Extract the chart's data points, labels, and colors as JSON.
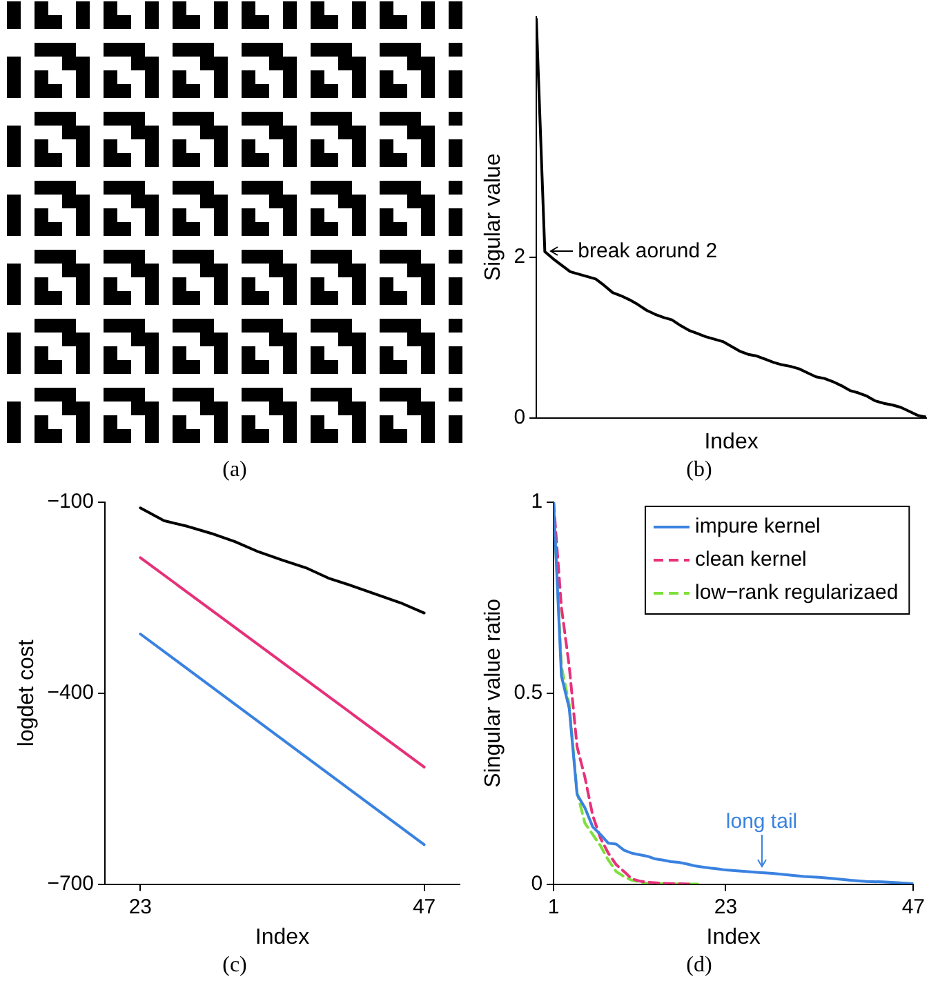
{
  "chart_data": [
    {
      "type": "other",
      "annotations": [
        "(a)"
      ]
    },
    {
      "type": "line",
      "ylabel": "Sigular value",
      "xlabel": "Index",
      "categories": [
        null,
        null,
        null,
        null,
        null,
        null,
        null,
        null,
        null,
        null,
        null,
        null,
        null,
        null,
        null,
        null,
        null,
        null,
        null,
        null,
        null,
        null,
        null,
        null,
        null,
        null,
        null,
        null,
        null,
        null,
        null,
        null,
        null,
        null,
        null,
        null,
        null,
        null,
        null,
        null,
        null,
        null,
        null,
        null,
        null,
        null,
        null
      ],
      "series": [
        {
          "color": "#000000",
          "values": [
            4.97,
            2.07,
            1.98,
            1.9,
            1.82,
            1.79,
            1.76,
            1.73,
            1.65,
            1.56,
            1.52,
            1.47,
            1.41,
            1.34,
            1.29,
            1.25,
            1.22,
            1.15,
            1.09,
            1.05,
            1.01,
            0.98,
            0.95,
            0.89,
            0.83,
            0.79,
            0.77,
            0.73,
            0.69,
            0.66,
            0.64,
            0.61,
            0.56,
            0.51,
            0.49,
            0.45,
            0.4,
            0.34,
            0.31,
            0.27,
            0.21,
            0.18,
            0.16,
            0.13,
            0.08,
            0.03,
            0.01
          ]
        }
      ],
      "ylim": [
        0,
        5
      ],
      "yticks": [
        0,
        2
      ],
      "tick_labels": "y",
      "grid": false,
      "legend": false,
      "marker": "none",
      "annotations": [
        "break aorund 2",
        "(b)"
      ]
    },
    {
      "type": "line",
      "ylabel": "logdet cost",
      "xlabel": "Index",
      "series": [
        {
          "color": "#000000",
          "x": [
            23,
            25,
            27,
            29,
            31,
            33,
            35,
            37,
            39,
            41,
            43,
            45,
            47
          ],
          "values": [
            -109,
            -129,
            -138,
            -149,
            -162,
            -178,
            -191,
            -203,
            -220,
            -232,
            -245,
            -258,
            -274
          ]
        },
        {
          "color": "#e6317a",
          "x": [
            23,
            47
          ],
          "values": [
            -187,
            -516
          ]
        },
        {
          "color": "#3a82e0",
          "x": [
            23,
            47
          ],
          "values": [
            -307,
            -638
          ]
        }
      ],
      "xlim": [
        20,
        50
      ],
      "xticks": [
        23,
        47
      ],
      "ylim": [
        -700,
        -100
      ],
      "yticks": [
        {
          "value": -700,
          "label": "−700"
        },
        {
          "value": -400,
          "label": "−400"
        },
        {
          "value": -100,
          "label": "−100"
        }
      ],
      "grid": false,
      "legend": false,
      "marker": "none",
      "annotations": [
        "(c)"
      ]
    },
    {
      "type": "line",
      "ylabel": "Singular value ratio",
      "xlabel": "Index",
      "series": [
        {
          "name": "impure kernel",
          "color": "#3a82e0",
          "line_style": "solid",
          "x": [
            1,
            2,
            3,
            4,
            5,
            6,
            7,
            8,
            9,
            10,
            11,
            12,
            13,
            14,
            15,
            16,
            17,
            18,
            19,
            20,
            21,
            22,
            23,
            25,
            27,
            29,
            31,
            33,
            35,
            37,
            39,
            41,
            43,
            45,
            47
          ],
          "values": [
            1.0,
            0.545,
            0.46,
            0.235,
            0.2,
            0.15,
            0.13,
            0.107,
            0.105,
            0.089,
            0.081,
            0.077,
            0.073,
            0.066,
            0.063,
            0.059,
            0.057,
            0.053,
            0.048,
            0.045,
            0.042,
            0.04,
            0.037,
            0.034,
            0.031,
            0.028,
            0.024,
            0.02,
            0.018,
            0.014,
            0.01,
            0.007,
            0.006,
            0.004,
            0.001
          ]
        },
        {
          "name": "clean kernel",
          "color": "#e8317a",
          "line_style": "dashed",
          "x": [
            1,
            2,
            3,
            4,
            5,
            6,
            7,
            8,
            9,
            10,
            11,
            12,
            13,
            15,
            17,
            19
          ],
          "values": [
            1.0,
            0.725,
            0.57,
            0.36,
            0.28,
            0.18,
            0.12,
            0.081,
            0.051,
            0.033,
            0.014,
            0.008,
            0.005,
            0.002,
            0.001,
            0
          ]
        },
        {
          "name": "low−rank regularizaed",
          "color": "#7ee03a",
          "line_style": "dashed",
          "x": [
            1,
            2,
            3,
            4,
            5,
            6,
            7,
            8,
            9,
            10,
            11,
            13,
            15,
            20
          ],
          "values": [
            1.0,
            0.57,
            0.47,
            0.24,
            0.16,
            0.13,
            0.1,
            0.063,
            0.033,
            0.02,
            0.01,
            0.002,
            0.001,
            0
          ]
        }
      ],
      "xlim": [
        1,
        47
      ],
      "xticks": [
        1,
        23,
        47
      ],
      "ylim": [
        0,
        1
      ],
      "yticks": [
        0,
        0.5,
        1
      ],
      "grid": false,
      "legend": "top right",
      "marker": "none",
      "annotations": [
        {
          "text": "long tail",
          "x": 27.6,
          "y": 0.034
        },
        "(d)"
      ]
    }
  ]
}
